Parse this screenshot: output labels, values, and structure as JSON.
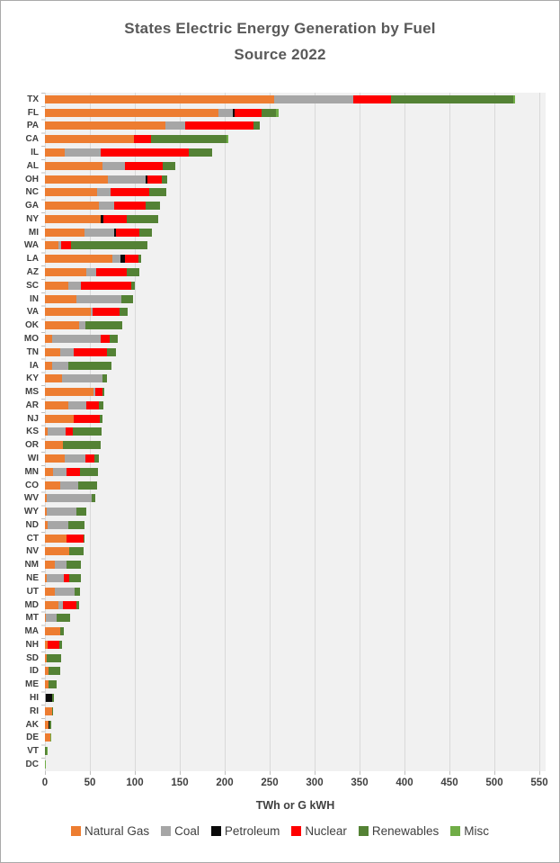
{
  "header": {
    "title_lines": [
      "States Electric Energy  Generation by Fuel",
      "Source 2022"
    ]
  },
  "chart_data": {
    "type": "bar",
    "orientation": "horizontal",
    "stacked": true,
    "title": "States Electric Energy  Generation by Fuel Source 2022",
    "xlabel": "TWh or G kWH",
    "x_ticks": [
      0,
      50,
      100,
      150,
      200,
      250,
      300,
      350,
      400,
      450,
      500,
      550
    ],
    "xlim": [
      0,
      557
    ],
    "grid": true,
    "legend_position": "bottom",
    "plot_background": "#f1f1f1",
    "gridline_color": "#d9d9d9",
    "categories": [
      "TX",
      "FL",
      "PA",
      "CA",
      "IL",
      "AL",
      "OH",
      "NC",
      "GA",
      "NY",
      "MI",
      "WA",
      "LA",
      "AZ",
      "SC",
      "IN",
      "VA",
      "OK",
      "MO",
      "TN",
      "IA",
      "KY",
      "MS",
      "AR",
      "NJ",
      "KS",
      "OR",
      "WI",
      "MN",
      "CO",
      "WV",
      "WY",
      "ND",
      "CT",
      "NV",
      "NM",
      "NE",
      "UT",
      "MD",
      "MT",
      "MA",
      "NH",
      "SD",
      "ID",
      "ME",
      "HI",
      "RI",
      "AK",
      "DE",
      "VT",
      "DC"
    ],
    "series": [
      {
        "name": "Natural Gas",
        "color": "#ED7D31",
        "values": [
          255,
          193,
          134,
          99,
          22,
          64,
          70,
          58,
          60,
          62,
          44,
          15,
          75,
          46,
          26,
          35,
          51,
          38,
          8,
          17,
          8,
          19,
          54,
          26,
          32,
          3,
          20,
          22,
          9,
          17,
          2,
          2,
          3,
          24,
          27,
          11,
          2,
          11,
          15,
          1,
          17,
          3,
          2,
          4,
          4,
          0,
          7.5,
          3.5,
          5.5,
          0,
          0
        ]
      },
      {
        "name": "Coal",
        "color": "#A6A6A6",
        "values": [
          88,
          16,
          22,
          0,
          40,
          25,
          42,
          15,
          17,
          0,
          33,
          3,
          9,
          11,
          14,
          50,
          2,
          7,
          54,
          15,
          18,
          45,
          2,
          20,
          0,
          20,
          0,
          23,
          15,
          20,
          50,
          33,
          23,
          0,
          0,
          13,
          19,
          22,
          5,
          12,
          0,
          0,
          0,
          0,
          0,
          0.5,
          0,
          0.7,
          0,
          0,
          0
        ]
      },
      {
        "name": "Petroleum",
        "color": "#0A0A0A",
        "values": [
          0,
          2,
          0,
          0,
          0,
          0,
          2,
          0,
          0,
          3,
          2,
          0,
          5,
          0,
          0,
          0,
          0,
          0,
          0,
          0,
          0,
          0,
          0,
          0,
          0,
          0,
          0,
          0,
          0,
          0,
          0,
          0,
          0,
          0,
          0,
          0,
          0,
          0,
          0,
          0,
          0,
          0,
          0,
          0,
          0,
          7,
          0,
          0.6,
          0,
          0,
          0
        ]
      },
      {
        "name": "Nuclear",
        "color": "#FF0000",
        "values": [
          42,
          30,
          76,
          19,
          98,
          42,
          16,
          43,
          35,
          26,
          26,
          11,
          15,
          34,
          56,
          0,
          30,
          0,
          10,
          37,
          0,
          0,
          8,
          14,
          29,
          8,
          0,
          10,
          15,
          0,
          0,
          0,
          0,
          19,
          0,
          0,
          6,
          0,
          15,
          0,
          0,
          13,
          0,
          0,
          0,
          0,
          0,
          0,
          0,
          0,
          0
        ]
      },
      {
        "name": "Renewables",
        "color": "#548235",
        "values": [
          136,
          16,
          7,
          84,
          26,
          14,
          6,
          19,
          16,
          35,
          14,
          85,
          3,
          14,
          4,
          13,
          9,
          41,
          9,
          10,
          48,
          5,
          2,
          5,
          3,
          32,
          42,
          5,
          20,
          21,
          4,
          11,
          18,
          1,
          16,
          16,
          13,
          6,
          3,
          15,
          4,
          3,
          16,
          13,
          9,
          2,
          0.5,
          2.2,
          0,
          2,
          0
        ]
      },
      {
        "name": "Misc",
        "color": "#70AD47",
        "values": [
          2,
          3,
          0,
          2,
          0,
          0,
          0,
          0,
          0,
          0,
          0,
          0,
          0,
          0,
          0,
          0,
          0,
          0,
          0,
          0,
          0,
          0,
          0,
          0,
          0,
          0,
          0,
          0,
          0,
          0,
          0,
          0,
          0,
          0,
          0,
          0,
          0,
          0,
          0,
          0,
          0,
          0,
          0,
          0,
          0,
          0,
          0,
          0,
          0.5,
          0.2,
          0.1
        ]
      }
    ]
  }
}
